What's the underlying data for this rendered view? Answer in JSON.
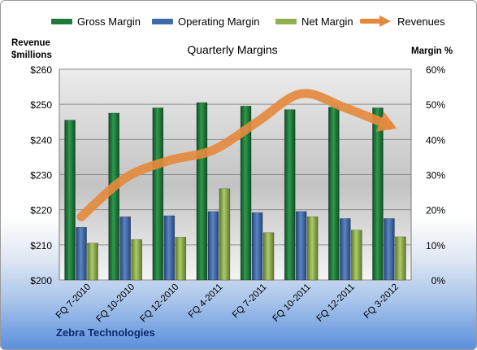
{
  "colors": {
    "gross": "#1f7a3a",
    "operating": "#3e6aa8",
    "net": "#8fae4e",
    "revenues": "#e48a3e"
  },
  "chart_data": {
    "type": "bar",
    "title": "Quarterly Margins",
    "left_axis_title_line1": "Revenue",
    "left_axis_title_line2": "$millions",
    "right_axis_title": "Margin %",
    "company": "Zebra Technologies",
    "categories": [
      "FQ 7-2010",
      "FQ 10-2010",
      "FQ 12-2010",
      "FQ 4-2011",
      "FQ 7-2011",
      "FQ 10-2011",
      "FQ 12-2011",
      "FQ 3-2012"
    ],
    "series": [
      {
        "name": "Gross Margin",
        "axis": "right",
        "values": [
          45.5,
          47.5,
          49,
          50.5,
          49.5,
          48.5,
          49.2,
          49
        ]
      },
      {
        "name": "Operating Margin",
        "axis": "right",
        "values": [
          15,
          18,
          18.3,
          19.5,
          19.2,
          19.5,
          17.5,
          17.5
        ]
      },
      {
        "name": "Net Margin",
        "axis": "right",
        "values": [
          10.5,
          11.5,
          12.2,
          26,
          13.5,
          18,
          14.2,
          12.3
        ]
      },
      {
        "name": "Revenues",
        "type": "line",
        "axis": "left",
        "values": [
          218,
          229,
          234,
          237,
          245,
          253,
          249,
          244
        ]
      }
    ],
    "y_left": {
      "min": 200,
      "max": 260,
      "ticks": [
        "$200",
        "$210",
        "$220",
        "$230",
        "$240",
        "$250",
        "$260"
      ]
    },
    "y_right": {
      "min": 0,
      "max": 60,
      "ticks": [
        "0%",
        "10%",
        "20%",
        "30%",
        "40%",
        "50%",
        "60%"
      ]
    },
    "grid": true,
    "legend_position": "top"
  }
}
